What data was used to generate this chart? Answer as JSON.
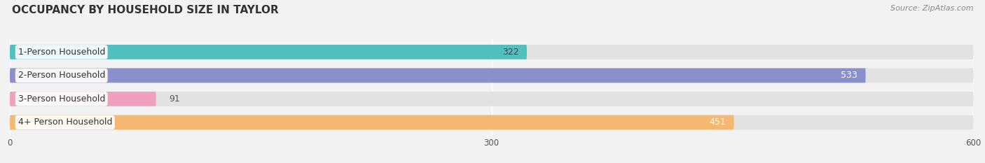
{
  "title": "OCCUPANCY BY HOUSEHOLD SIZE IN TAYLOR",
  "source": "Source: ZipAtlas.com",
  "categories": [
    "1-Person Household",
    "2-Person Household",
    "3-Person Household",
    "4+ Person Household"
  ],
  "values": [
    322,
    533,
    91,
    451
  ],
  "bar_colors": [
    "#52BFBF",
    "#8B8FCC",
    "#F0A0BC",
    "#F5B870"
  ],
  "value_colors": [
    "#444444",
    "#ffffff",
    "#444444",
    "#ffffff"
  ],
  "xlim": [
    0,
    600
  ],
  "xticks": [
    0,
    300,
    600
  ],
  "background_color": "#f2f2f2",
  "bar_bg_color": "#e2e2e2",
  "title_fontsize": 11,
  "source_fontsize": 8,
  "label_fontsize": 9,
  "value_fontsize": 9,
  "figsize": [
    14.06,
    2.33
  ],
  "dpi": 100
}
